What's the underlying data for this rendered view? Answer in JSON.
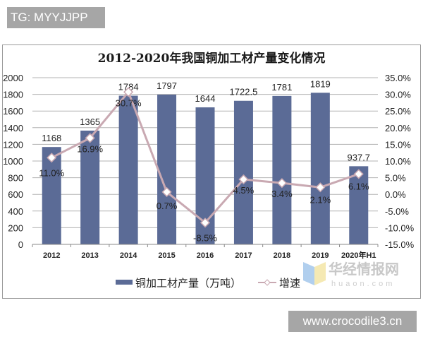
{
  "watermarks": {
    "top_badge": "TG: MYYJJPP",
    "bottom_badge": "www.crocodile3.cn",
    "logo_cn": "华经情报网",
    "logo_en": "huaon.com"
  },
  "chart_data": {
    "type": "bar",
    "title": "2012-2020年我国铜加工材产量变化情况",
    "categories": [
      "2012",
      "2013",
      "2014",
      "2015",
      "2016",
      "2017",
      "2018",
      "2019",
      "2020年H1"
    ],
    "series": [
      {
        "name": "铜加工材产量（万吨）",
        "type": "bar",
        "axis": "left",
        "color": "#5b6b96",
        "values": [
          1168,
          1365,
          1784,
          1797,
          1644,
          1722.5,
          1781,
          1819,
          937.7
        ],
        "labels": [
          "1168",
          "1365",
          "1784",
          "1797",
          "1644",
          "1722.5",
          "1781",
          "1819",
          "937.7"
        ]
      },
      {
        "name": "增速",
        "type": "line",
        "axis": "right",
        "color": "#c9a9b2",
        "marker": "diamond",
        "values": [
          11.0,
          16.9,
          30.7,
          0.7,
          -8.5,
          4.5,
          3.4,
          2.1,
          6.1
        ],
        "labels": [
          "11.0%",
          "16.9%",
          "30.7%",
          "0.7%",
          "-8.5%",
          "4.5%",
          "3.4%",
          "2.1%",
          "6.1%"
        ]
      }
    ],
    "left_axis": {
      "ylim": [
        0,
        2000
      ],
      "ticks": [
        "2000",
        "1800",
        "1600",
        "1400",
        "1200",
        "1000",
        "800",
        "600",
        "400",
        "200",
        "0"
      ]
    },
    "right_axis": {
      "ylim": [
        -15.0,
        35.0
      ],
      "ticks": [
        "35.0%",
        "30.0%",
        "25.0%",
        "20.0%",
        "15.0%",
        "10.0%",
        "5.0%",
        "0.0%",
        "-5.0%",
        "-10.0%",
        "-15.0%"
      ]
    },
    "xlabel": "",
    "ylabel": "",
    "grid": true,
    "legend_position": "bottom"
  }
}
